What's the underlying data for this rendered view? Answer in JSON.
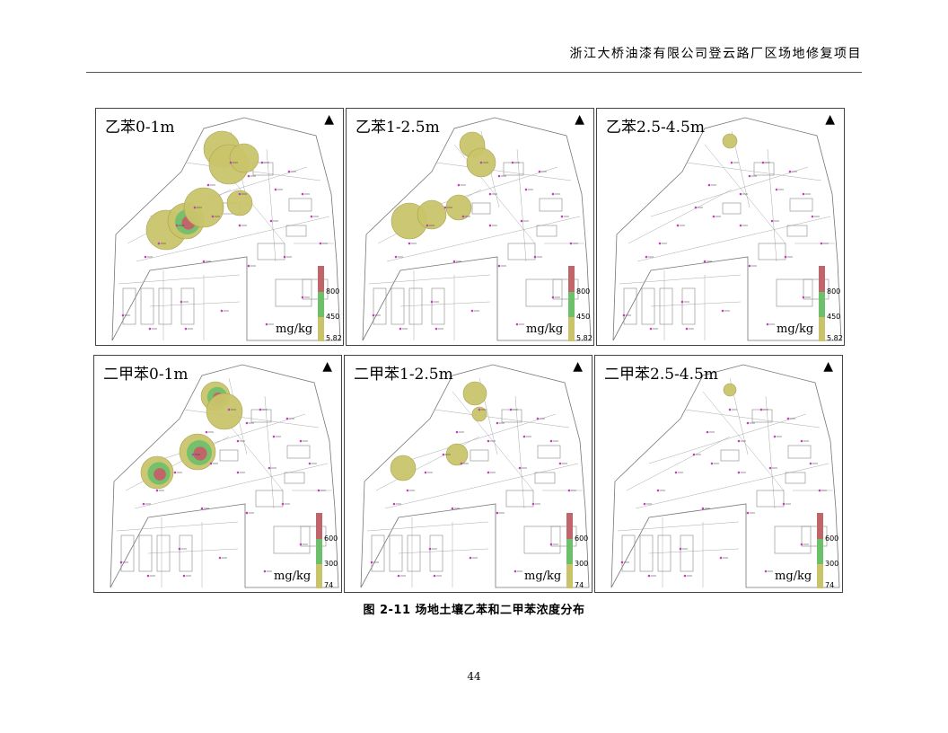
{
  "header": {
    "title": "浙江大桥油漆有限公司登云路厂区场地修复项目"
  },
  "panels": [
    {
      "title": "乙苯0-1m",
      "legend_high": "800",
      "legend_mid": "450",
      "legend_low": "5.82",
      "unit": "mg/kg",
      "north": "▲"
    },
    {
      "title": "乙苯1-2.5m",
      "legend_high": "800",
      "legend_mid": "450",
      "legend_low": "5.82",
      "unit": "mg/kg",
      "north": "▲"
    },
    {
      "title": "乙苯2.5-4.5m",
      "legend_high": "800",
      "legend_mid": "450",
      "legend_low": "5.82",
      "unit": "mg/kg",
      "north": "▲"
    },
    {
      "title": "二甲苯0-1m",
      "legend_high": "600",
      "legend_mid": "300",
      "legend_low": "74",
      "unit": "mg/kg",
      "north": "▲"
    },
    {
      "title": "二甲苯1-2.5m",
      "legend_high": "600",
      "legend_mid": "300",
      "legend_low": "74",
      "unit": "mg/kg",
      "north": "▲"
    },
    {
      "title": "二甲苯2.5-4.5m",
      "legend_high": "600",
      "legend_mid": "300",
      "legend_low": "74",
      "unit": "mg/kg",
      "north": "▲"
    }
  ],
  "legend_colors": {
    "high": "#c0666a",
    "mid": "#6cc06a",
    "low": "#c9c46a"
  },
  "caption": "图 2-11 场地土壤乙苯和二甲苯浓度分布",
  "page_number": "44"
}
